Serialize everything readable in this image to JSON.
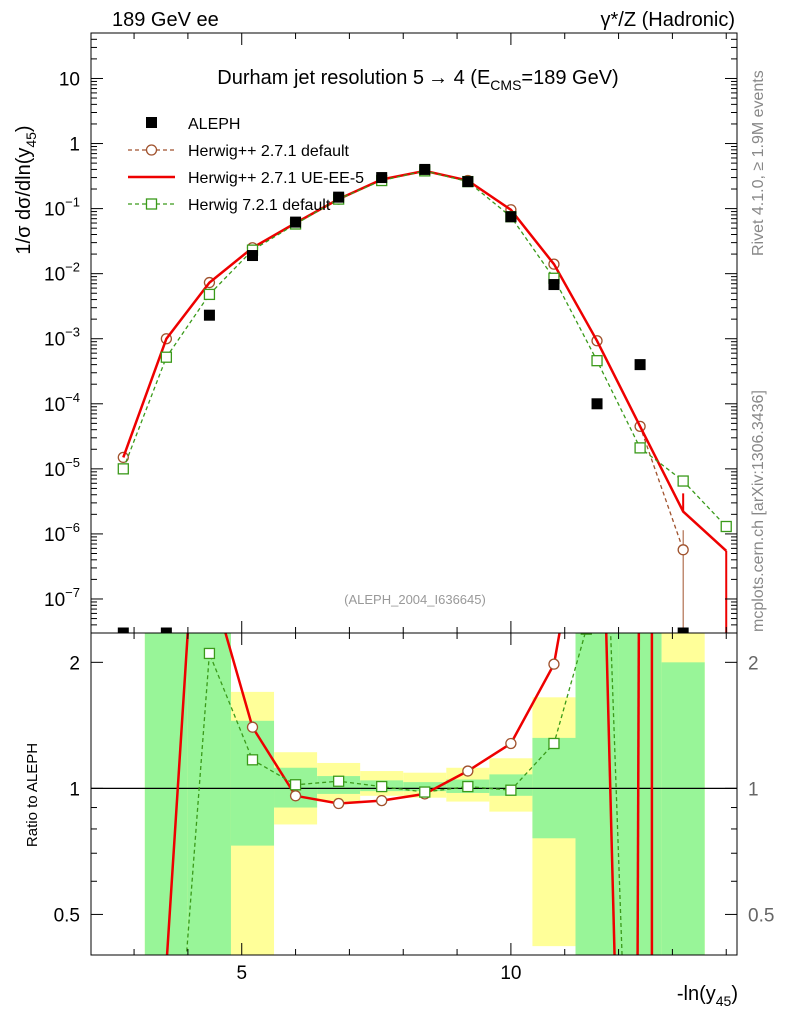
{
  "header": {
    "left": "189 GeV ee",
    "right": "γ*/Z (Hadronic)"
  },
  "side_labels": {
    "rivet": "Rivet 4.1.0, ≥ 1.9M events",
    "mcplots": "mcplots.cern.ch [arXiv:1306.3436]"
  },
  "colors": {
    "aleph": "#000000",
    "herwigpp_default": "#a0522d",
    "herwigpp_ueee5": "#ee0000",
    "herwig7": "#3a9a1a",
    "band_green": "#98f598",
    "band_yellow": "#ffff99"
  },
  "chart_data": [
    {
      "type": "line",
      "title": "Durham jet resolution 5→ 4 (E_CMS=189 GeV)",
      "title_main": "Durham jet resolution 5",
      "title_arrow": "→",
      "title_rest": " 4 (E",
      "title_sub": "CMS",
      "title_end": "=189 GeV)",
      "ylabel": "1/σ dσ/dln(y45)",
      "ylabel_main": "1/σ  dσ/dln(y",
      "ylabel_sub": "45",
      "ylabel_end": ")",
      "yscale": "log",
      "xlim": [
        2.2,
        14.2
      ],
      "ylim": [
        3e-08,
        50
      ],
      "yticks": [
        {
          "value": 1e-07,
          "base": "10",
          "exp": "−7"
        },
        {
          "value": 1e-06,
          "base": "10",
          "exp": "−6"
        },
        {
          "value": 1e-05,
          "base": "10",
          "exp": "−5"
        },
        {
          "value": 0.0001,
          "base": "10",
          "exp": "−4"
        },
        {
          "value": 0.001,
          "base": "10",
          "exp": "−3"
        },
        {
          "value": 0.01,
          "base": "10",
          "exp": "−2"
        },
        {
          "value": 0.1,
          "base": "10",
          "exp": "−1"
        },
        {
          "value": 1,
          "base": "1",
          "exp": ""
        },
        {
          "value": 10,
          "base": "10",
          "exp": ""
        }
      ],
      "watermark": "(ALEPH_2004_I636645)",
      "legend_position": "top-left",
      "series": [
        {
          "name": "ALEPH",
          "style": "data",
          "x": [
            2.8,
            3.6,
            4.4,
            5.2,
            6.0,
            6.8,
            7.6,
            8.4,
            9.2,
            10.0,
            10.8,
            11.6,
            12.4,
            13.2
          ],
          "values": [
            3e-08,
            3e-08,
            0.0023,
            0.019,
            0.062,
            0.15,
            0.3,
            0.4,
            0.26,
            0.075,
            0.0068,
            0.0001,
            0.0004,
            3e-08
          ]
        },
        {
          "name": "Herwig++ 2.7.1 default",
          "style": "dashed-circle",
          "x": [
            2.8,
            3.6,
            4.4,
            5.2,
            6.0,
            6.8,
            7.6,
            8.4,
            9.2,
            10.0,
            10.8,
            11.6,
            12.4,
            13.2
          ],
          "values": [
            1.5e-05,
            0.001,
            0.0073,
            0.025,
            0.06,
            0.14,
            0.28,
            0.38,
            0.27,
            0.096,
            0.014,
            0.00093,
            4.5e-05,
            5.7e-07
          ],
          "errors": [
            0,
            0,
            0,
            0,
            0,
            0,
            0,
            0,
            0,
            0,
            0,
            0,
            0,
            0.5
          ]
        },
        {
          "name": "Herwig++ 2.7.1 UE-EE-5",
          "style": "solid",
          "x": [
            2.8,
            3.6,
            4.4,
            5.2,
            6.0,
            6.8,
            7.6,
            8.4,
            9.2,
            10.0,
            10.8,
            11.6,
            12.4,
            13.2,
            14.0
          ],
          "values": [
            1.5e-05,
            0.001,
            0.0073,
            0.025,
            0.06,
            0.14,
            0.28,
            0.38,
            0.27,
            0.096,
            0.014,
            0.00093,
            4.5e-05,
            2.2e-06,
            5.5e-07
          ]
        },
        {
          "name": "Herwig 7.2.1 default",
          "style": "dashed-square",
          "x": [
            2.8,
            3.6,
            4.4,
            5.2,
            6.0,
            6.8,
            7.6,
            8.4,
            9.2,
            10.0,
            10.8,
            11.6,
            12.4,
            13.2,
            14.0
          ],
          "values": [
            1e-05,
            0.00052,
            0.0048,
            0.023,
            0.058,
            0.14,
            0.27,
            0.38,
            0.26,
            0.075,
            0.0085,
            0.00046,
            2.1e-05,
            6.5e-06,
            1.3e-06
          ]
        }
      ]
    },
    {
      "type": "line",
      "title": "",
      "ylabel": "Ratio to ALEPH",
      "xlabel": "-ln(y45)",
      "xlabel_main": "-ln(y",
      "xlabel_sub": "45",
      "xlabel_end": ")",
      "yscale": "log",
      "xlim": [
        2.2,
        14.2
      ],
      "ylim": [
        0.4,
        2.35
      ],
      "xticks": [
        5,
        10
      ],
      "yticks": [
        {
          "value": 0.5,
          "label": "0.5"
        },
        {
          "value": 1,
          "label": "1"
        },
        {
          "value": 2,
          "label": "2"
        }
      ],
      "bands": [
        {
          "x0": 3.2,
          "x1": 4.0,
          "yellow": [
            0.3,
            3.0
          ],
          "green": [
            0.3,
            3.0
          ]
        },
        {
          "x0": 4.0,
          "x1": 4.8,
          "yellow": [
            0.3,
            3.0
          ],
          "green": [
            0.3,
            3.0
          ]
        },
        {
          "x0": 4.8,
          "x1": 5.6,
          "yellow": [
            0.4,
            1.7
          ],
          "green": [
            0.73,
            1.45
          ]
        },
        {
          "x0": 5.6,
          "x1": 6.4,
          "yellow": [
            0.82,
            1.22
          ],
          "green": [
            0.9,
            1.12
          ]
        },
        {
          "x0": 6.4,
          "x1": 7.2,
          "yellow": [
            0.93,
            1.15
          ],
          "green": [
            0.97,
            1.07
          ]
        },
        {
          "x0": 7.2,
          "x1": 8.0,
          "yellow": [
            0.96,
            1.1
          ],
          "green": [
            0.985,
            1.045
          ]
        },
        {
          "x0": 8.0,
          "x1": 8.8,
          "yellow": [
            0.95,
            1.09
          ],
          "green": [
            0.985,
            1.035
          ]
        },
        {
          "x0": 8.8,
          "x1": 9.6,
          "yellow": [
            0.93,
            1.12
          ],
          "green": [
            0.975,
            1.05
          ]
        },
        {
          "x0": 9.6,
          "x1": 10.4,
          "yellow": [
            0.88,
            1.18
          ],
          "green": [
            0.96,
            1.08
          ]
        },
        {
          "x0": 10.4,
          "x1": 11.2,
          "yellow": [
            0.42,
            1.65
          ],
          "green": [
            0.76,
            1.32
          ]
        },
        {
          "x0": 11.2,
          "x1": 12.0,
          "yellow": [
            0.3,
            3.0
          ],
          "green": [
            0.3,
            3.0
          ]
        },
        {
          "x0": 12.0,
          "x1": 12.8,
          "yellow": [
            0.3,
            3.0
          ],
          "green": [
            0.3,
            3.0
          ]
        },
        {
          "x0": 12.8,
          "x1": 13.6,
          "yellow": [
            0.3,
            3.0
          ],
          "green": [
            0.3,
            2.0
          ]
        }
      ],
      "series": [
        {
          "name": "Herwig++ 2.7.1 default",
          "style": "dashed-circle",
          "x": [
            4.4,
            5.2,
            6.0,
            6.8,
            7.6,
            8.4,
            9.2,
            10.0,
            10.8
          ],
          "values": [
            3.2,
            1.4,
            0.96,
            0.92,
            0.935,
            0.97,
            1.1,
            1.28,
            1.98
          ]
        },
        {
          "name": "Herwig++ 2.7.1 UE-EE-5",
          "style": "solid",
          "x": [
            3.55,
            4.05,
            4.4,
            5.2,
            6.0,
            6.8,
            7.6,
            8.4,
            9.2,
            10.0,
            10.8,
            11.05
          ],
          "values": [
            0.3,
            3.0,
            3.2,
            1.4,
            0.96,
            0.92,
            0.935,
            0.97,
            1.1,
            1.28,
            1.98,
            3.0
          ],
          "extra_segments": [
            {
              "x": [
                11.75,
                11.95
              ],
              "values": [
                3.0,
                0.3
              ]
            },
            {
              "x": [
                12.35,
                12.38
              ],
              "values": [
                0.3,
                3.0
              ]
            },
            {
              "x": [
                12.62,
                12.62
              ],
              "values": [
                0.3,
                3.0
              ]
            }
          ]
        },
        {
          "name": "Herwig 7.2.1 default",
          "style": "dashed-square",
          "x": [
            3.9,
            4.4,
            5.2,
            6.0,
            6.8,
            7.6,
            8.4,
            9.2,
            10.0,
            10.8,
            11.4,
            11.6
          ],
          "values": [
            0.3,
            2.1,
            1.17,
            1.02,
            1.04,
            1.01,
            0.98,
            1.01,
            0.99,
            1.28,
            2.4,
            3.0
          ],
          "extra_segments": [
            {
              "x": [
                11.85,
                12.1
              ],
              "values": [
                2.4,
                0.3
              ]
            }
          ]
        }
      ]
    }
  ]
}
